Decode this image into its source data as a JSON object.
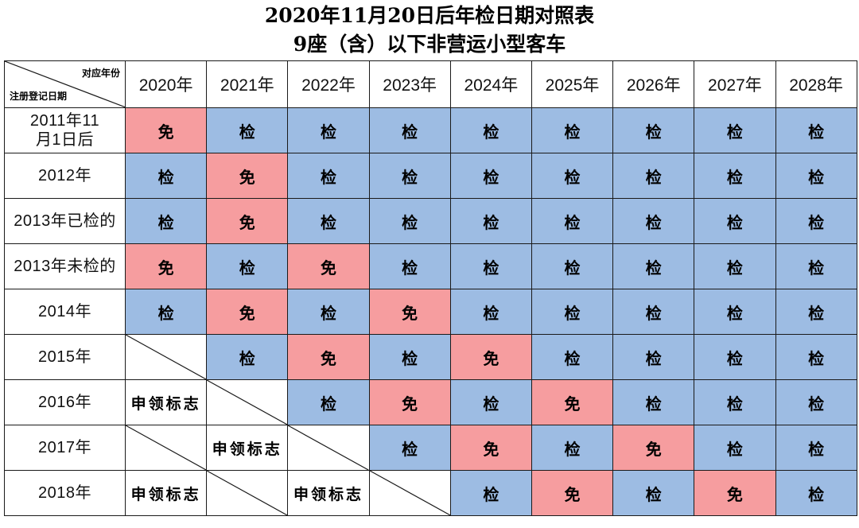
{
  "title": {
    "line1": "2020年11月20日后年检日期对照表",
    "line2": "9座（含）以下非营运小型客车"
  },
  "corner": {
    "top_label": "对应年份",
    "bottom_label": "注册登记日期"
  },
  "years": [
    "2020年",
    "2021年",
    "2022年",
    "2023年",
    "2024年",
    "2025年",
    "2026年",
    "2027年",
    "2028年"
  ],
  "labels": {
    "inspect": "检",
    "exempt": "免",
    "sign": "申领标志"
  },
  "rows": [
    {
      "label": "2011年11月1日后",
      "cells": [
        "exempt",
        "inspect",
        "inspect",
        "inspect",
        "inspect",
        "inspect",
        "inspect",
        "inspect",
        "inspect"
      ]
    },
    {
      "label": "2012年",
      "cells": [
        "inspect",
        "exempt",
        "inspect",
        "inspect",
        "inspect",
        "inspect",
        "inspect",
        "inspect",
        "inspect"
      ]
    },
    {
      "label": "2013年已检的",
      "cells": [
        "inspect",
        "exempt",
        "inspect",
        "inspect",
        "inspect",
        "inspect",
        "inspect",
        "inspect",
        "inspect"
      ]
    },
    {
      "label": "2013年未检的",
      "cells": [
        "exempt",
        "inspect",
        "exempt",
        "inspect",
        "inspect",
        "inspect",
        "inspect",
        "inspect",
        "inspect"
      ]
    },
    {
      "label": "2014年",
      "cells": [
        "inspect",
        "exempt",
        "inspect",
        "exempt",
        "inspect",
        "inspect",
        "inspect",
        "inspect",
        "inspect"
      ]
    },
    {
      "label": "2015年",
      "cells": [
        "empty",
        "inspect",
        "exempt",
        "inspect",
        "exempt",
        "inspect",
        "inspect",
        "inspect",
        "inspect"
      ]
    },
    {
      "label": "2016年",
      "cells": [
        "sign",
        "empty",
        "inspect",
        "exempt",
        "inspect",
        "exempt",
        "inspect",
        "inspect",
        "inspect"
      ]
    },
    {
      "label": "2017年",
      "cells": [
        "empty",
        "sign",
        "empty",
        "inspect",
        "exempt",
        "inspect",
        "exempt",
        "inspect",
        "inspect"
      ]
    },
    {
      "label": "2018年",
      "cells": [
        "sign",
        "empty",
        "sign",
        "empty",
        "inspect",
        "exempt",
        "inspect",
        "exempt",
        "inspect"
      ]
    }
  ]
}
